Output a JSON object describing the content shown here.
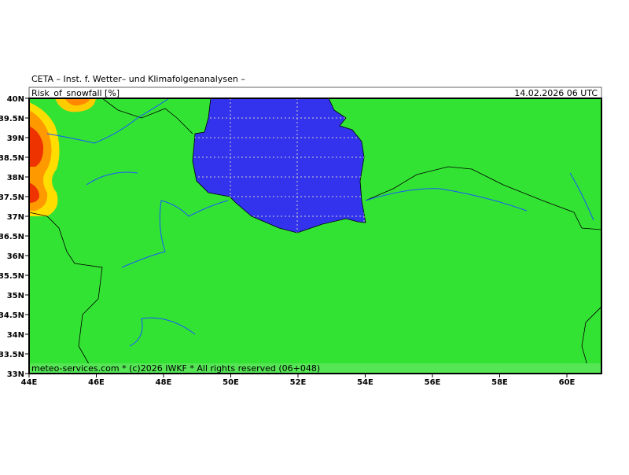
{
  "header": {
    "title": "CETA – Inst. f. Wetter– und Klimafolgenanalysen –",
    "field": "Risk_of_snowfall [%]",
    "valid_time": "14.02.2026 06 UTC"
  },
  "axes": {
    "lat_labels": [
      "40N",
      "39.5N",
      "39N",
      "38.5N",
      "38N",
      "37.5N",
      "37N",
      "36.5N",
      "36N",
      "35.5N",
      "35N",
      "34.5N",
      "34N",
      "33.5N",
      "33N"
    ],
    "lon_labels": [
      "44E",
      "46E",
      "48E",
      "50E",
      "52E",
      "54E",
      "56E",
      "58E",
      "60E"
    ]
  },
  "footer": {
    "credit": "meteo-services.com * (c)2026 IWKF * All rights reserved (06+048)"
  }
}
